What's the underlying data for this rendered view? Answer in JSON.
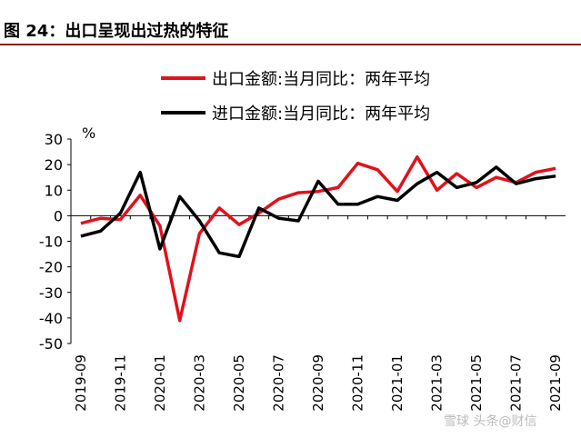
{
  "figure": {
    "title": "图 24：出口呈现出过热的特征"
  },
  "watermark": {
    "text": "雪球 头条@财信"
  },
  "chart_data": {
    "type": "line",
    "title": "",
    "ylabel": "%",
    "xlabel": "",
    "ylim": [
      -50,
      30
    ],
    "yticks": [
      30,
      20,
      10,
      0,
      -10,
      -20,
      -30,
      -40,
      -50
    ],
    "x": [
      "2019-09",
      "2019-10",
      "2019-11",
      "2019-12",
      "2020-01",
      "2020-02",
      "2020-03",
      "2020-04",
      "2020-05",
      "2020-06",
      "2020-07",
      "2020-08",
      "2020-09",
      "2020-10",
      "2020-11",
      "2020-12",
      "2021-01",
      "2021-02",
      "2021-03",
      "2021-04",
      "2021-05",
      "2021-06",
      "2021-07",
      "2021-08",
      "2021-09"
    ],
    "xtick_labels": [
      "2019-09",
      "2019-11",
      "2020-01",
      "2020-03",
      "2020-05",
      "2020-07",
      "2020-09",
      "2020-11",
      "2021-01",
      "2021-03",
      "2021-05",
      "2021-07",
      "2021-09"
    ],
    "legend_position": "top",
    "series": [
      {
        "name": "出口金额:当月同比：两年平均",
        "color": "#e0121b",
        "values": [
          -3,
          -1,
          -1.5,
          8,
          -4,
          -41,
          -7,
          3,
          -3.5,
          1,
          6.5,
          9,
          9.5,
          11,
          20.5,
          18,
          9.5,
          23,
          10,
          16.5,
          11,
          15,
          13,
          17,
          18.5
        ]
      },
      {
        "name": "进口金额:当月同比：两年平均",
        "color": "#000000",
        "values": [
          -8,
          -6,
          1,
          17,
          -13,
          7.5,
          -2,
          -14.5,
          -16,
          3,
          -1,
          -2,
          13.5,
          4.5,
          4.5,
          7.5,
          6,
          12.5,
          17,
          11,
          13,
          19,
          12.5,
          14.5,
          15.5
        ]
      }
    ]
  }
}
